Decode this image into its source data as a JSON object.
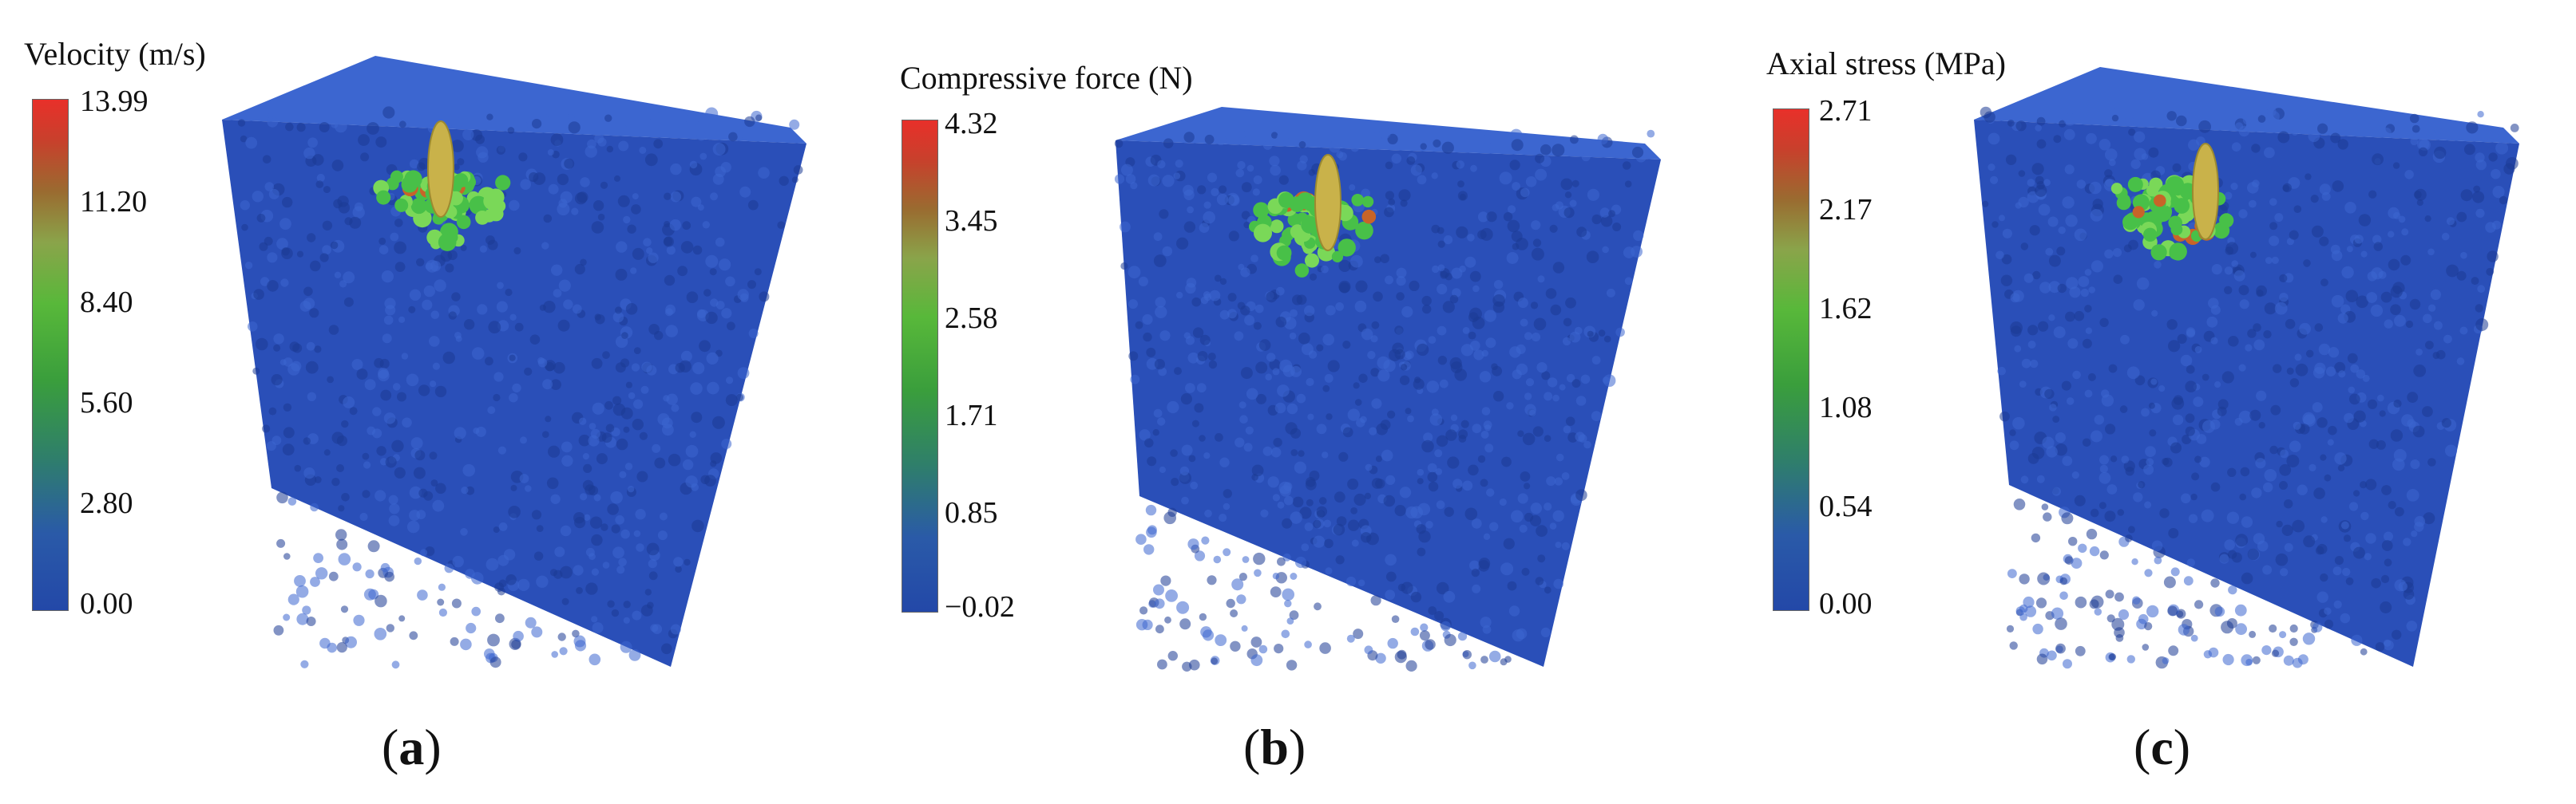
{
  "colorscale": [
    "#2348a8",
    "#2a5aa8",
    "#2f7f6a",
    "#3a9e3c",
    "#58b83a",
    "#8aa44a",
    "#9a6b30",
    "#c8402c",
    "#e8302a"
  ],
  "particle_colors": {
    "base": "#2a4fb8",
    "dark": "#1c3a94",
    "light": "#3c66d0",
    "hot_green": "#48c048",
    "hot_lightgreen": "#7ad858",
    "hot_orange": "#c86428",
    "pile": "#c9b24a"
  },
  "panels": [
    {
      "colorbar_title": "Velocity (m/s)",
      "ticks": [
        "13.99",
        "11.20",
        "8.40",
        "5.60",
        "2.80",
        "0.00"
      ],
      "caption": "a"
    },
    {
      "colorbar_title": "Compressive force (N)",
      "ticks": [
        "4.32",
        "3.45",
        "2.58",
        "1.71",
        "0.85",
        "−0.02"
      ],
      "caption": "b"
    },
    {
      "colorbar_title": "Axial stress (MPa)",
      "ticks": [
        "2.71",
        "2.17",
        "1.62",
        "1.08",
        "0.54",
        "0.00"
      ],
      "caption": "c"
    }
  ]
}
